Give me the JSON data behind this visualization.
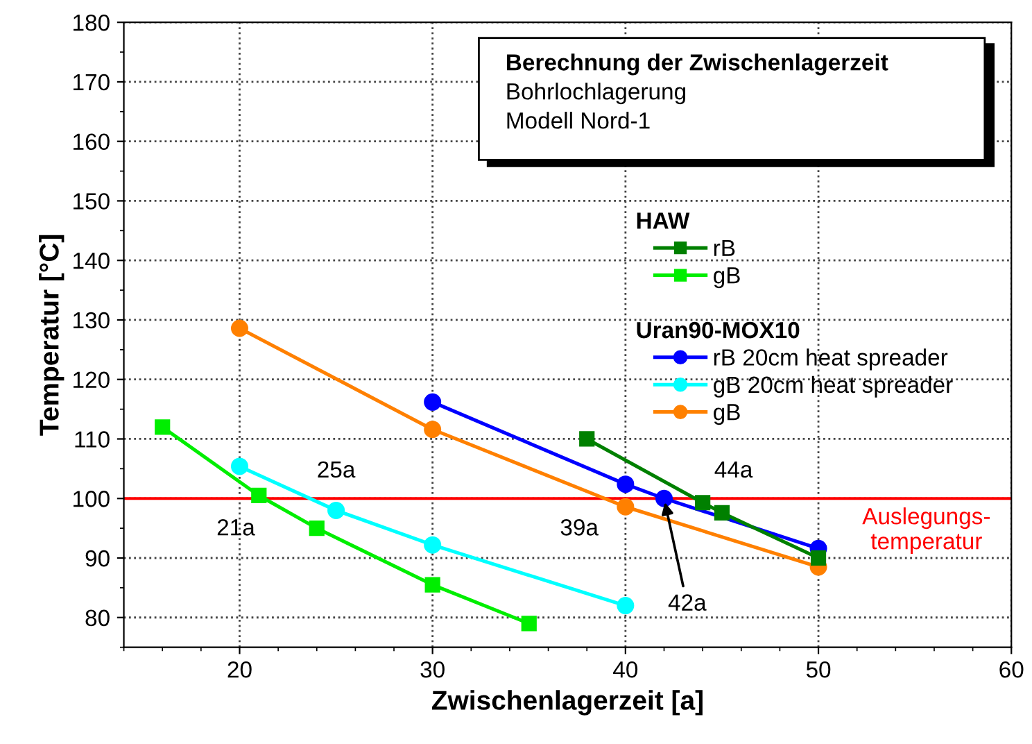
{
  "chart_data": {
    "type": "line",
    "title": "Berechnung der Zwischenlagerzeit",
    "subtitle": "Bohrlochlagerung\nModell Nord-1",
    "xlabel": "Zwischenlagerzeit [a]",
    "ylabel": "Temperatur [°C]",
    "xlim": [
      14,
      60
    ],
    "ylim": [
      75,
      180
    ],
    "xticks": [
      20,
      30,
      40,
      50,
      60
    ],
    "yticks": [
      80,
      90,
      100,
      110,
      120,
      130,
      140,
      150,
      160,
      170,
      180
    ],
    "grid": true,
    "legend": "right",
    "series": [
      {
        "name": "rB",
        "color": "#008000",
        "marker": "square",
        "x": [
          38,
          44,
          45,
          50
        ],
        "values": [
          110,
          99.3,
          97.6,
          90
        ]
      },
      {
        "name": "gB",
        "color": "#00ee00",
        "marker": "square",
        "x": [
          16,
          21,
          24,
          30,
          35
        ],
        "values": [
          112,
          100.5,
          95,
          85.5,
          79
        ]
      },
      {
        "name": "rB 20cm heat spreader",
        "color": "#0000ff",
        "marker": "circle",
        "x": [
          30,
          40,
          42,
          50
        ],
        "values": [
          116.2,
          102.4,
          100,
          91.6
        ]
      },
      {
        "name": "gB 20cm heat spreader",
        "color": "#00ffff",
        "marker": "circle",
        "x": [
          20,
          25,
          30,
          40
        ],
        "values": [
          105.4,
          98,
          92.2,
          82
        ]
      },
      {
        "name": "gB",
        "color": "#ff8000",
        "marker": "circle",
        "x": [
          20,
          30,
          40,
          50
        ],
        "values": [
          128.6,
          111.6,
          98.6,
          88.5
        ]
      }
    ],
    "ref_lines": [
      {
        "axis": "y",
        "value": 100,
        "label": "Auslegungs-\ntemperatur",
        "color": "#ff0000"
      }
    ],
    "annotations": [
      "HAW",
      "Uran90-MOX10",
      {
        "text": "21a",
        "x": 21,
        "y": 100
      },
      {
        "text": "25a",
        "x": 25,
        "y": 100
      },
      {
        "text": "39a",
        "x": 39,
        "y": 100
      },
      {
        "text": "44a",
        "x": 44,
        "y": 100
      },
      {
        "text": "42a",
        "x": 42,
        "y": 100
      }
    ]
  }
}
